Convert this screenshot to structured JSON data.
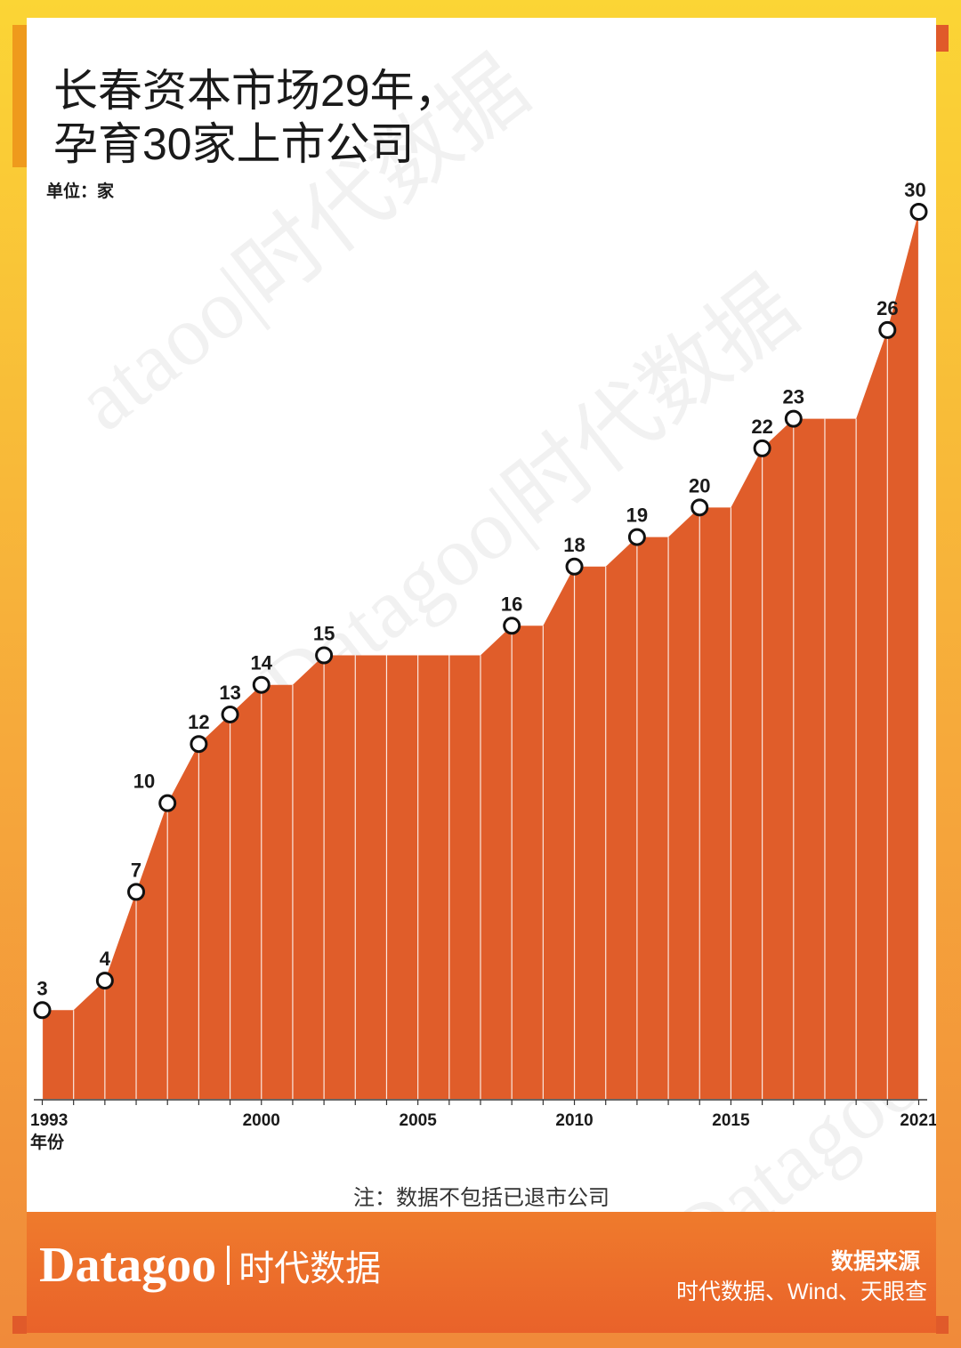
{
  "title_lines": [
    "长春资本市场29年，",
    "孕育30家上市公司"
  ],
  "unit": "单位：家",
  "x_axis_label": "年份",
  "note": "注：数据不包括已退市公司",
  "brand": {
    "en": "Datagoo",
    "cn": "时代数据"
  },
  "source": {
    "title": "数据来源",
    "text": "时代数据、Wind、天眼查"
  },
  "watermarks": [
    "Datagoo|时代数据",
    "Datagoo|时代数据",
    "Datagoo",
    "ataoo|时代数据"
  ],
  "colors": {
    "area": "#e05d2a",
    "background": "#fbd535",
    "footer": "#e9622a"
  },
  "chart_data": {
    "type": "area",
    "x": [
      1993,
      1994,
      1995,
      1996,
      1997,
      1998,
      1999,
      2000,
      2001,
      2002,
      2003,
      2004,
      2005,
      2006,
      2007,
      2008,
      2009,
      2010,
      2011,
      2012,
      2013,
      2014,
      2015,
      2016,
      2017,
      2018,
      2019,
      2020,
      2021
    ],
    "values": [
      3,
      3,
      4,
      7,
      10,
      12,
      13,
      14,
      14,
      15,
      15,
      15,
      15,
      15,
      15,
      16,
      16,
      18,
      18,
      19,
      19,
      20,
      20,
      22,
      23,
      23,
      23,
      26,
      30
    ],
    "labeled_points": [
      {
        "x": 1993,
        "value": 3,
        "label": "3"
      },
      {
        "x": 1995,
        "value": 4,
        "label": "4"
      },
      {
        "x": 1996,
        "value": 7,
        "label": "7"
      },
      {
        "x": 1997,
        "value": 10,
        "label": "10"
      },
      {
        "x": 1998,
        "value": 12,
        "label": "12"
      },
      {
        "x": 1999,
        "value": 13,
        "label": "13"
      },
      {
        "x": 2000,
        "value": 14,
        "label": "14"
      },
      {
        "x": 2002,
        "value": 15,
        "label": "15"
      },
      {
        "x": 2008,
        "value": 16,
        "label": "16"
      },
      {
        "x": 2010,
        "value": 18,
        "label": "18"
      },
      {
        "x": 2012,
        "value": 19,
        "label": "19"
      },
      {
        "x": 2014,
        "value": 20,
        "label": "20"
      },
      {
        "x": 2016,
        "value": 22,
        "label": "22"
      },
      {
        "x": 2017,
        "value": 23,
        "label": "23"
      },
      {
        "x": 2020,
        "value": 26,
        "label": "26"
      },
      {
        "x": 2021,
        "value": 30,
        "label": "30"
      }
    ],
    "x_ticks": [
      "1993",
      "2000",
      "2005",
      "2010",
      "2015",
      "2021"
    ],
    "xlabel": "年份",
    "ylabel": "",
    "ylim": [
      0,
      30
    ],
    "grid": false
  }
}
